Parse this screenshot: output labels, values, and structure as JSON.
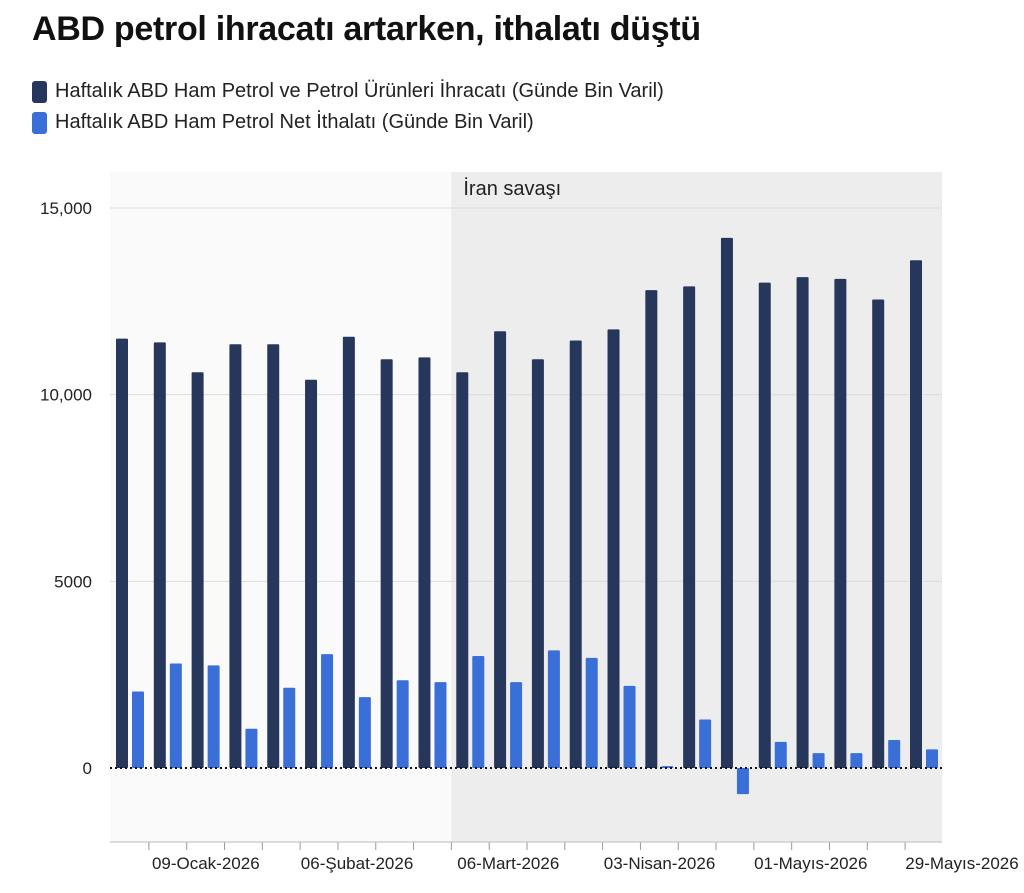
{
  "title": "ABD petrol ihracatı artarken, ithalatı düştü",
  "legend": [
    {
      "label": "Haftalık ABD Ham Petrol ve Petrol Ürünleri İhracatı  (Günde Bin Varil)",
      "color": "#27375c"
    },
    {
      "label": "Haftalık ABD Ham Petrol Net İthalatı  (Günde Bin Varil)",
      "color": "#3a6fd8"
    }
  ],
  "chart_data": {
    "type": "bar",
    "categories": [
      "02-Ocak-2026",
      "09-Ocak-2026",
      "16-Ocak-2026",
      "23-Ocak-2026",
      "30-Ocak-2026",
      "06-Şubat-2026",
      "13-Şubat-2026",
      "20-Şubat-2026",
      "27-Şubat-2026",
      "06-Mart-2026",
      "13-Mart-2026",
      "20-Mart-2026",
      "27-Mart-2026",
      "03-Nisan-2026",
      "10-Nisan-2026",
      "17-Nisan-2026",
      "24-Nisan-2026",
      "01-Mayıs-2026",
      "08-Mayıs-2026",
      "15-Mayıs-2026",
      "22-Mayıs-2026",
      "29-Mayıs-2026"
    ],
    "series": [
      {
        "name": "Haftalık ABD Ham Petrol ve Petrol Ürünleri İhracatı  (Günde Bin Varil)",
        "color": "#27375c",
        "values": [
          11500,
          11400,
          10600,
          11350,
          11350,
          10400,
          11550,
          10950,
          11000,
          10600,
          11700,
          10950,
          11450,
          11750,
          12800,
          12900,
          14200,
          13000,
          13150,
          13100,
          12550,
          13600
        ]
      },
      {
        "name": "Haftalık ABD Ham Petrol Net İthalatı  (Günde Bin Varil)",
        "color": "#3a6fd8",
        "values": [
          2050,
          2800,
          2750,
          1050,
          2150,
          3050,
          1900,
          2350,
          2300,
          3000,
          2300,
          3150,
          2950,
          2200,
          50,
          1300,
          -700,
          700,
          400,
          400,
          750,
          500
        ]
      }
    ],
    "x_tick_labels": [
      "09-Ocak-2026",
      "06-Şubat-2026",
      "06-Mart-2026",
      "03-Nisan-2026",
      "01-Mayıs-2026",
      "29-Mayıs-2026"
    ],
    "y_ticks": [
      0,
      5000,
      10000,
      15000
    ],
    "y_tick_labels": [
      "0",
      "5000",
      "10,000",
      "15,000"
    ],
    "ylim": [
      -2000,
      16500
    ],
    "shaded_region": {
      "label": "İran savaşı",
      "from": "06-Mart-2026",
      "to": "29-Mayıs-2026"
    },
    "zero_line": "dotted",
    "grid": true,
    "xlabel": "",
    "ylabel": ""
  }
}
